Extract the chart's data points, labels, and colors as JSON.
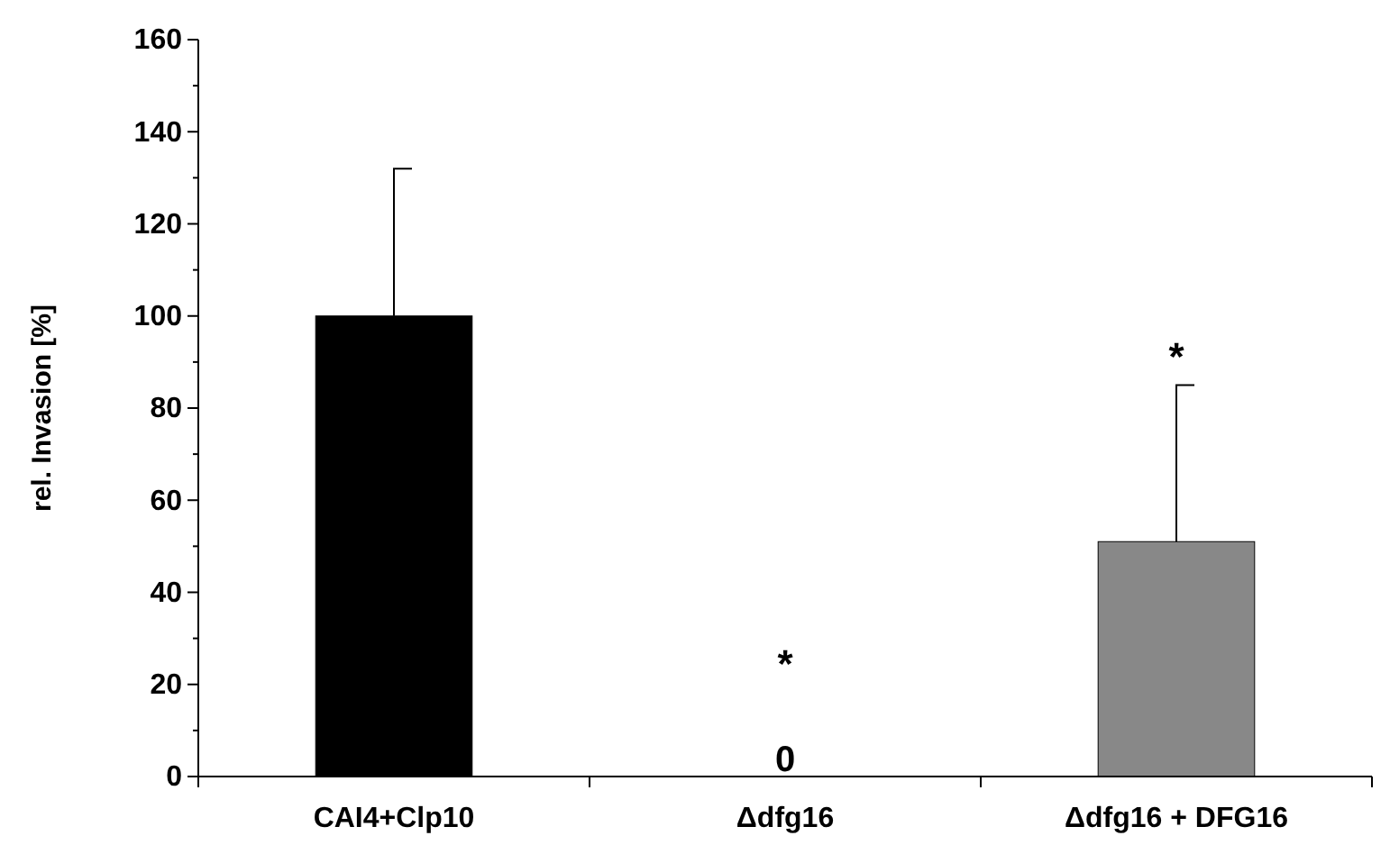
{
  "chart_data": {
    "type": "bar",
    "ylabel": "rel. Invasion [%]",
    "categories": [
      "CAI4+Clp10",
      "Δdfg16",
      "Δdfg16 + DFG16"
    ],
    "values": [
      100,
      0,
      51
    ],
    "colors": [
      "#000000",
      "#000000",
      "#888888"
    ],
    "errors": [
      [
        100,
        132
      ],
      null,
      [
        51,
        85
      ]
    ],
    "value_labels": [
      null,
      "0",
      null
    ],
    "annotations": [
      {
        "text": "*",
        "x": "Δdfg16",
        "y": 0
      },
      {
        "text": "*",
        "x": "Δdfg16 + DFG16",
        "y": 85
      }
    ],
    "ylim": [
      0,
      160
    ],
    "yticks": [
      0,
      {
        "value": 10,
        "label": null
      },
      20,
      {
        "value": 30,
        "label": null
      },
      40,
      {
        "value": 50,
        "label": null
      },
      60,
      {
        "value": 70,
        "label": null
      },
      80,
      {
        "value": 90,
        "label": null
      },
      100,
      {
        "value": 110,
        "label": null
      },
      120,
      {
        "value": 130,
        "label": null
      },
      140,
      {
        "value": 150,
        "label": null
      },
      160
    ],
    "grid": false
  }
}
